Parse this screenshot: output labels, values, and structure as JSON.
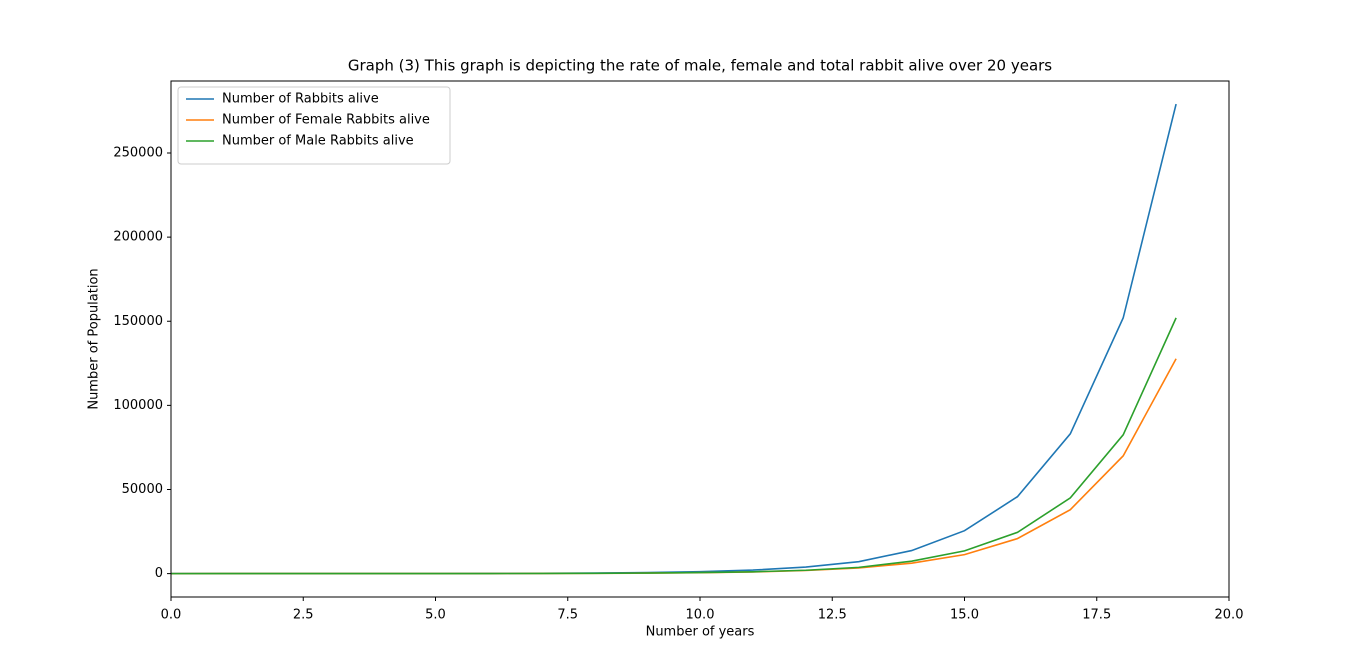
{
  "chart_data": {
    "type": "line",
    "title": "Graph (3) This graph is depicting the rate of male, female and total rabbit alive over 20 years",
    "xlabel": "Number of years",
    "ylabel": "Number of Population",
    "x": [
      0,
      1,
      2,
      3,
      4,
      5,
      6,
      7,
      8,
      9,
      10,
      11,
      12,
      13,
      14,
      15,
      16,
      17,
      18,
      19
    ],
    "series": [
      {
        "name": "Number of Rabbits alive",
        "color": "#1f77b4",
        "values": [
          2,
          4,
          9,
          16,
          30,
          55,
          100,
          190,
          340,
          630,
          1150,
          2100,
          3900,
          7100,
          13700,
          25500,
          45700,
          83100,
          152000,
          279100
        ]
      },
      {
        "name": "Number of Female Rabbits alive",
        "color": "#ff7f0e",
        "values": [
          1,
          2,
          4,
          8,
          14,
          26,
          48,
          90,
          170,
          300,
          550,
          1000,
          1850,
          3400,
          6200,
          11300,
          20800,
          38000,
          70000,
          127700
        ]
      },
      {
        "name": "Number of Male Rabbits alive",
        "color": "#2ca02c",
        "values": [
          1,
          2,
          5,
          8,
          16,
          29,
          52,
          100,
          170,
          330,
          600,
          1100,
          2000,
          3700,
          7400,
          13500,
          24500,
          45000,
          82500,
          152000
        ]
      }
    ],
    "xlim": [
      0,
      20
    ],
    "xticks": [
      {
        "value": 0,
        "label": "0.0"
      },
      {
        "value": 2.5,
        "label": "2.5"
      },
      {
        "value": 5,
        "label": "5.0"
      },
      {
        "value": 7.5,
        "label": "7.5"
      },
      {
        "value": 10,
        "label": "10.0"
      },
      {
        "value": 12.5,
        "label": "12.5"
      },
      {
        "value": 15,
        "label": "15.0"
      },
      {
        "value": 17.5,
        "label": "17.5"
      },
      {
        "value": 20,
        "label": "20.0"
      }
    ],
    "ylim": [
      -13900,
      292800
    ],
    "yticks": [
      0,
      50000,
      100000,
      150000,
      200000,
      250000
    ],
    "legend": "upper left"
  }
}
